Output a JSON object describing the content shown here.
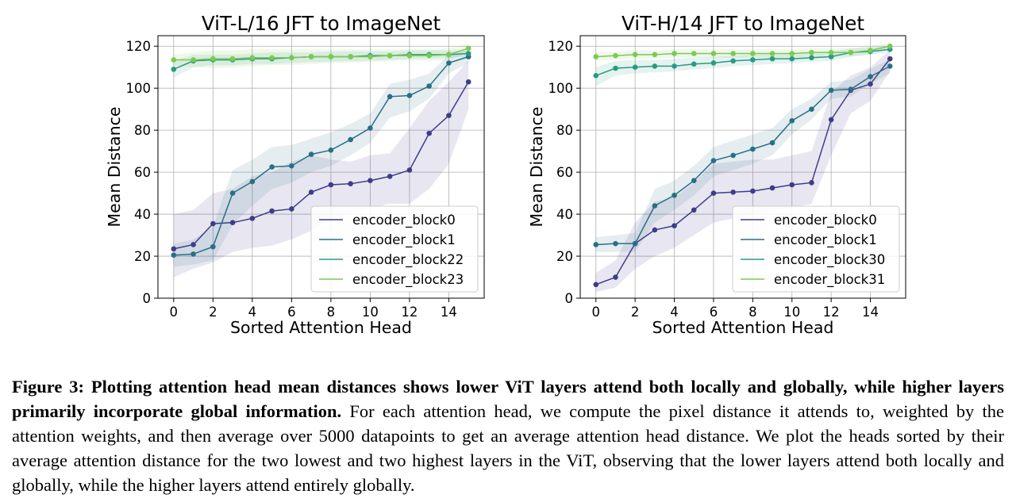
{
  "chart_data": [
    {
      "type": "line",
      "title": "ViT-L/16 JFT to ImageNet",
      "xlabel": "Sorted Attention Head",
      "ylabel": "Mean Distance",
      "xlim": [
        -0.8,
        15.8
      ],
      "ylim": [
        0,
        125
      ],
      "xticks": [
        0,
        2,
        4,
        6,
        8,
        10,
        12,
        14
      ],
      "yticks": [
        0,
        20,
        40,
        60,
        80,
        100,
        120
      ],
      "grid": true,
      "legend_position": "lower-right",
      "x": [
        0,
        1,
        2,
        3,
        4,
        5,
        6,
        7,
        8,
        9,
        10,
        11,
        12,
        13,
        14,
        15
      ],
      "series": [
        {
          "name": "encoder_block0",
          "color": "#3e3d8a",
          "values": [
            23.5,
            25.5,
            35.5,
            36,
            38,
            41.5,
            42.5,
            50.5,
            54,
            54.5,
            56,
            58,
            61,
            78.5,
            87,
            103
          ],
          "lower": [
            10,
            14,
            17,
            22,
            24,
            25,
            28,
            32,
            38,
            40,
            43,
            45,
            45,
            52,
            64,
            90
          ],
          "upper": [
            40,
            42,
            50,
            52,
            58,
            60,
            65,
            68,
            66,
            65,
            68,
            69,
            81,
            94,
            103,
            113
          ]
        },
        {
          "name": "encoder_block1",
          "color": "#2a6f85",
          "values": [
            20.5,
            21,
            24.5,
            50,
            55.5,
            62.5,
            63,
            68.5,
            70.5,
            75.5,
            81,
            96,
            96.5,
            101,
            112,
            115
          ],
          "lower": [
            15,
            16,
            18,
            35,
            44,
            52,
            55,
            60,
            63,
            68,
            74,
            86,
            89,
            95,
            107,
            112
          ],
          "upper": [
            26,
            28,
            34,
            61,
            66,
            72,
            73,
            76,
            79,
            83,
            88,
            102,
            104,
            107,
            116,
            118
          ]
        },
        {
          "name": "encoder_block22",
          "color": "#2a9a83",
          "values": [
            109,
            113,
            113.5,
            113.5,
            114,
            114,
            114.5,
            115,
            115,
            115,
            115.5,
            115.5,
            116,
            116,
            116,
            116.5
          ],
          "lower": [
            105,
            110,
            111,
            111,
            111.5,
            111.5,
            112,
            112.5,
            112.5,
            113,
            113,
            113.5,
            114,
            114,
            114.5,
            115
          ],
          "upper": [
            113,
            116,
            116,
            116,
            116.5,
            117,
            117,
            117,
            117.5,
            117.5,
            117.5,
            117.5,
            118,
            118,
            118,
            118
          ]
        },
        {
          "name": "encoder_block23",
          "color": "#7cc954",
          "values": [
            113.5,
            113.5,
            114,
            114,
            114.5,
            114.5,
            114.5,
            115,
            115,
            115,
            115,
            115.5,
            115.5,
            115.5,
            116,
            119
          ],
          "lower": [
            111,
            110,
            109.5,
            110,
            110.5,
            111,
            111,
            111.5,
            112,
            112,
            112.5,
            113,
            113,
            113,
            113.5,
            117
          ],
          "upper": [
            116,
            117,
            118,
            118,
            118.5,
            118.5,
            118.5,
            118.5,
            118.5,
            118.5,
            118.5,
            118.5,
            118.5,
            118.5,
            119,
            121
          ]
        }
      ]
    },
    {
      "type": "line",
      "title": "ViT-H/14 JFT to ImageNet",
      "xlabel": "Sorted Attention Head",
      "ylabel": "Mean Distance",
      "xlim": [
        -0.8,
        15.8
      ],
      "ylim": [
        0,
        125
      ],
      "xticks": [
        0,
        2,
        4,
        6,
        8,
        10,
        12,
        14
      ],
      "yticks": [
        0,
        20,
        40,
        60,
        80,
        100,
        120
      ],
      "grid": true,
      "legend_position": "lower-right",
      "x": [
        0,
        1,
        2,
        3,
        4,
        5,
        6,
        7,
        8,
        9,
        10,
        11,
        12,
        13,
        14,
        15
      ],
      "series": [
        {
          "name": "encoder_block0",
          "color": "#3e3d8a",
          "values": [
            6.5,
            10,
            26,
            32.5,
            34.5,
            42,
            50,
            50.5,
            51,
            52.5,
            54,
            55,
            85,
            99,
            102,
            114
          ],
          "lower": [
            3,
            5,
            14,
            20,
            24,
            30,
            36,
            38,
            40,
            42,
            43,
            45,
            68,
            88,
            94,
            108
          ],
          "upper": [
            12,
            18,
            36,
            46,
            48,
            55,
            64,
            65,
            66,
            66,
            68,
            70,
            98,
            106,
            110,
            118
          ]
        },
        {
          "name": "encoder_block1",
          "color": "#2a6f85",
          "values": [
            25.5,
            26,
            26,
            44,
            49,
            56,
            65.5,
            68,
            71,
            74,
            84.5,
            90,
            99,
            99.5,
            105.5,
            110.5
          ],
          "lower": [
            22,
            22,
            22,
            36,
            42,
            49,
            58,
            61,
            64,
            68,
            78,
            85,
            95,
            96,
            102,
            107
          ],
          "upper": [
            29,
            30,
            31,
            52,
            56,
            63,
            72,
            75,
            78,
            81,
            90,
            95,
            103,
            104,
            109,
            114
          ]
        },
        {
          "name": "encoder_block30",
          "color": "#2a9a83",
          "values": [
            106,
            109.5,
            110,
            110.5,
            110.5,
            111.5,
            112,
            113,
            113.5,
            114,
            114,
            114.5,
            115,
            117,
            117.5,
            118.5
          ],
          "lower": [
            101,
            106,
            107,
            107.5,
            108,
            109,
            109.5,
            110.5,
            111,
            111.5,
            112,
            112.5,
            113,
            115,
            116,
            117
          ],
          "upper": [
            110,
            113,
            113.5,
            113.5,
            114,
            114.5,
            115,
            115.5,
            116,
            116.5,
            116.5,
            117,
            117.5,
            119,
            119.5,
            120
          ]
        },
        {
          "name": "encoder_block31",
          "color": "#7cc954",
          "values": [
            115,
            115.5,
            116,
            116,
            116.5,
            116.5,
            116.5,
            116.5,
            116.5,
            116.5,
            116.5,
            117,
            117,
            117,
            118,
            120
          ],
          "lower": [
            113,
            113.5,
            114,
            114,
            114.5,
            114.5,
            114.5,
            114.5,
            114.5,
            114.5,
            114.5,
            115,
            115,
            115,
            116,
            118.5
          ],
          "upper": [
            117,
            117.5,
            118,
            118,
            118.5,
            118.5,
            118.5,
            118.5,
            118.5,
            118.5,
            118.5,
            119,
            119,
            119,
            120,
            121.5
          ]
        }
      ]
    }
  ],
  "caption": {
    "label": "Figure 3:",
    "bold": "Plotting attention head mean distances shows lower ViT layers attend both locally and globally, while higher layers primarily incorporate global information.",
    "text": "For each attention head, we compute the pixel distance it attends to, weighted by the attention weights, and then average over 5000 datapoints to get an average attention head distance. We plot the heads sorted by their average attention distance for the two lowest and two highest layers in the ViT, observing that the lower layers attend both locally and globally, while the higher layers attend entirely globally."
  }
}
